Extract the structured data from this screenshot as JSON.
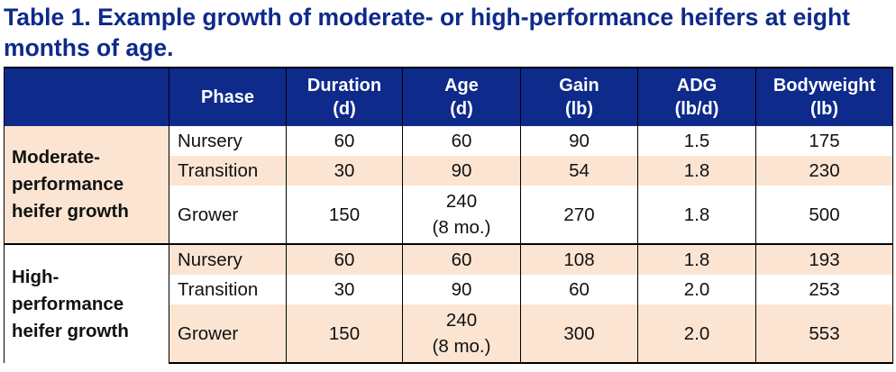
{
  "title": "Table 1. Example growth of moderate- or high-performance heifers at eight months of age.",
  "header": {
    "group": "",
    "phase": "Phase",
    "duration": [
      "Duration",
      "(d)"
    ],
    "age": [
      "Age",
      "(d)"
    ],
    "gain": [
      "Gain",
      "(lb)"
    ],
    "adg": [
      "ADG",
      "(lb/d)"
    ],
    "bodyweight": [
      "Bodyweight",
      "(lb)"
    ]
  },
  "groups": [
    {
      "label": [
        "Moderate-",
        "performance",
        "heifer growth"
      ],
      "rows": [
        {
          "phase": "Nursery",
          "duration": "60",
          "age": [
            "60"
          ],
          "gain": "90",
          "adg": "1.5",
          "bodyweight": "175"
        },
        {
          "phase": "Transition",
          "duration": "30",
          "age": [
            "90"
          ],
          "gain": "54",
          "adg": "1.8",
          "bodyweight": "230"
        },
        {
          "phase": "Grower",
          "duration": "150",
          "age": [
            "240",
            "(8 mo.)"
          ],
          "gain": "270",
          "adg": "1.8",
          "bodyweight": "500"
        }
      ]
    },
    {
      "label": [
        "High-",
        "performance",
        "heifer growth"
      ],
      "rows": [
        {
          "phase": "Nursery",
          "duration": "60",
          "age": [
            "60"
          ],
          "gain": "108",
          "adg": "1.8",
          "bodyweight": "193"
        },
        {
          "phase": "Transition",
          "duration": "30",
          "age": [
            "90"
          ],
          "gain": "60",
          "adg": "2.0",
          "bodyweight": "253"
        },
        {
          "phase": "Grower",
          "duration": "150",
          "age": [
            "240",
            "(8 mo.)"
          ],
          "gain": "300",
          "adg": "2.0",
          "bodyweight": "553"
        }
      ]
    }
  ]
}
